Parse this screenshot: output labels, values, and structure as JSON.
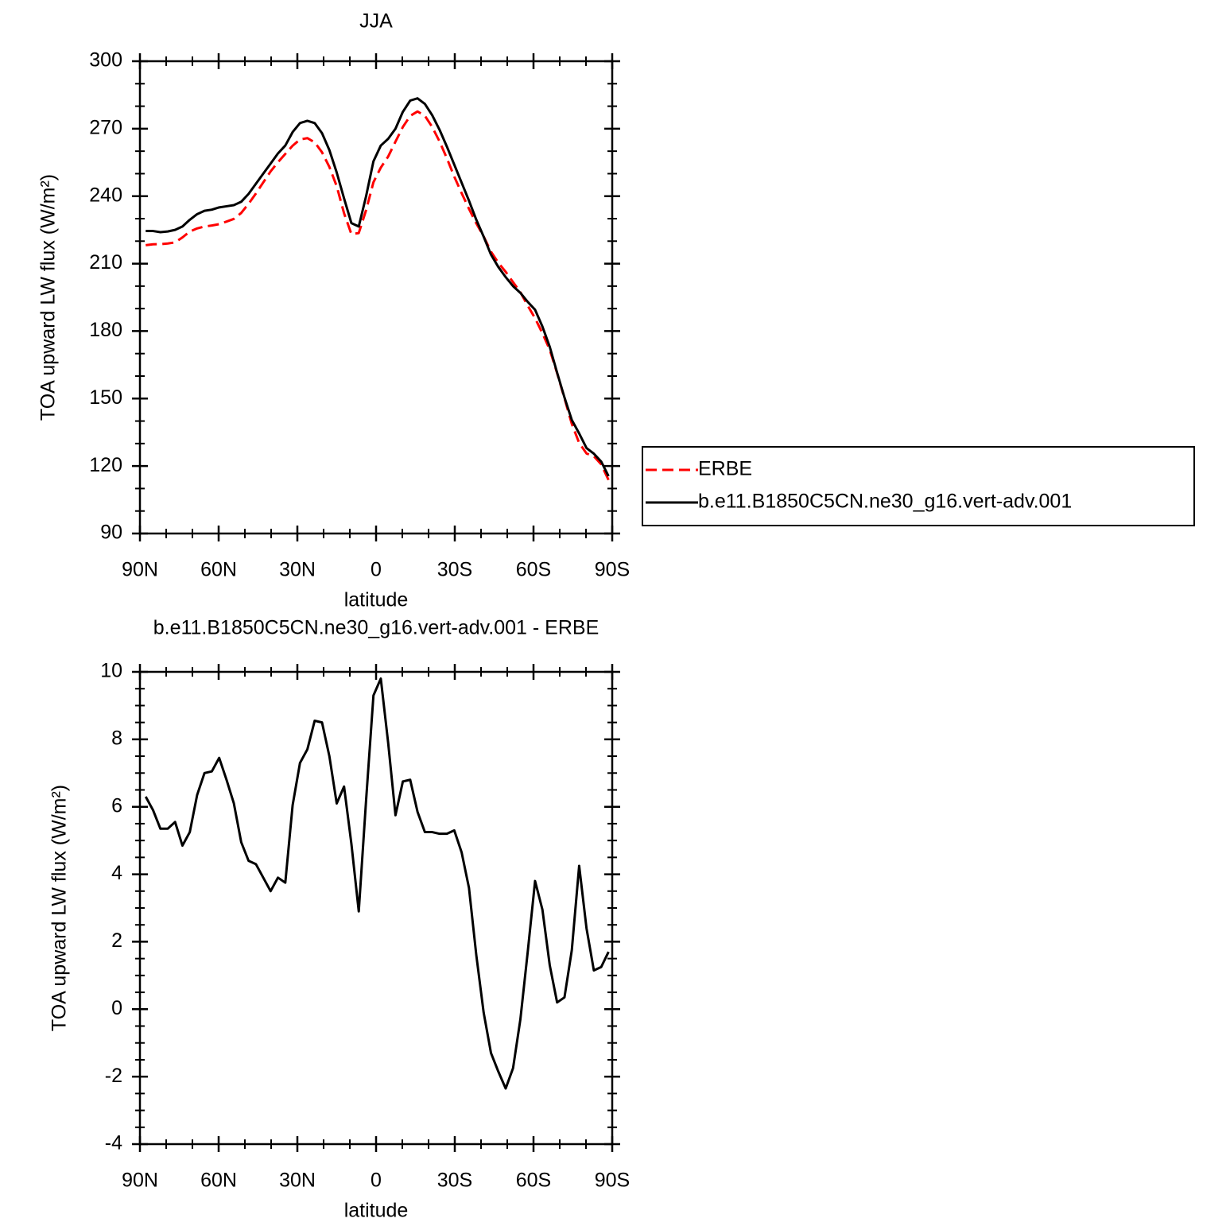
{
  "chart_data": [
    {
      "type": "line",
      "title": "JJA",
      "xlabel": "latitude",
      "ylabel": "TOA upward LW flux (W/m²)",
      "x": [
        87.8,
        85.0,
        82.2,
        79.4,
        76.6,
        73.8,
        71.0,
        68.2,
        65.4,
        62.6,
        59.8,
        57.0,
        54.2,
        51.4,
        48.6,
        45.8,
        43.0,
        40.2,
        37.4,
        34.6,
        31.8,
        29.0,
        26.2,
        23.4,
        20.6,
        17.8,
        15.0,
        12.2,
        9.4,
        6.6,
        3.8,
        1.0,
        -1.8,
        -4.6,
        -7.4,
        -10.2,
        -13.0,
        -15.8,
        -18.6,
        -21.4,
        -24.2,
        -27.0,
        -29.8,
        -32.6,
        -35.4,
        -38.2,
        -41.0,
        -43.8,
        -46.6,
        -49.4,
        -52.2,
        -55.0,
        -57.8,
        -60.6,
        -63.4,
        -66.2,
        -69.0,
        -71.8,
        -74.6,
        -77.4,
        -80.2,
        -83.0,
        -85.8,
        -88.6
      ],
      "series": [
        {
          "name": "ERBE",
          "color": "#ff0000",
          "dashed": true,
          "values": [
            218.2,
            218.6,
            218.65,
            218.95,
            219.45,
            221.65,
            224.25,
            225.65,
            226.5,
            226.95,
            227.55,
            228.7,
            229.9,
            232.55,
            236.6,
            241.2,
            246.1,
            251.0,
            255.1,
            258.75,
            262.45,
            265.2,
            265.8,
            263.95,
            259.5,
            253.0,
            244.4,
            232.4,
            223.1,
            223.6,
            233.8,
            246.2,
            252.7,
            257.6,
            264.25,
            270.75,
            275.7,
            277.65,
            275.75,
            270.75,
            264.3,
            256.8,
            248.7,
            241.35,
            234.4,
            227.9,
            222.1,
            215.3,
            210.35,
            206.35,
            201.75,
            197.3,
            191.3,
            185.7,
            179.05,
            171.7,
            161.3,
            150.15,
            138.75,
            130.25,
            125.6,
            124.35,
            120.75,
            113.8
          ]
        },
        {
          "name": "b.e11.B1850C5CN.ne30_g16.vert-adv.001",
          "color": "#000000",
          "dashed": false,
          "values": [
            224.5,
            224.5,
            224,
            224.3,
            225,
            226.5,
            229.5,
            232,
            233.5,
            234,
            235,
            235.5,
            236,
            237.5,
            241,
            245.5,
            250,
            254.5,
            259,
            262.5,
            268.5,
            272.5,
            273.5,
            272.5,
            268,
            260.5,
            250.5,
            239,
            228,
            226.5,
            240,
            255.5,
            262.5,
            265.5,
            270,
            277.5,
            282.5,
            283.5,
            281,
            276,
            269.5,
            262,
            254,
            246,
            238,
            229.5,
            222,
            214,
            208.5,
            204,
            200,
            197,
            193,
            189.5,
            182,
            173,
            161.5,
            150.5,
            140.5,
            134.5,
            128,
            125.5,
            122,
            115.5
          ]
        }
      ],
      "xlim": [
        90,
        -90
      ],
      "xticks": [
        {
          "value": 90,
          "label": "90N"
        },
        {
          "value": 60,
          "label": "60N"
        },
        {
          "value": 30,
          "label": "30N"
        },
        0,
        {
          "value": -30,
          "label": "30S"
        },
        {
          "value": -60,
          "label": "60S"
        },
        {
          "value": -90,
          "label": "90S"
        }
      ],
      "ylim": [
        90,
        300
      ],
      "yticks": [
        90,
        120,
        150,
        180,
        210,
        240,
        270,
        300
      ]
    },
    {
      "type": "line",
      "title": "b.e11.B1850C5CN.ne30_g16.vert-adv.001 - ERBE",
      "xlabel": "latitude",
      "ylabel": "TOA upward LW flux (W/m²)",
      "x": [
        87.8,
        85.0,
        82.2,
        79.4,
        76.6,
        73.8,
        71.0,
        68.2,
        65.4,
        62.6,
        59.8,
        57.0,
        54.2,
        51.4,
        48.6,
        45.8,
        43.0,
        40.2,
        37.4,
        34.6,
        31.8,
        29.0,
        26.2,
        23.4,
        20.6,
        17.8,
        15.0,
        12.2,
        9.4,
        6.6,
        3.8,
        1.0,
        -1.8,
        -4.6,
        -7.4,
        -10.2,
        -13.0,
        -15.8,
        -18.6,
        -21.4,
        -24.2,
        -27.0,
        -29.8,
        -32.6,
        -35.4,
        -38.2,
        -41.0,
        -43.8,
        -46.6,
        -49.4,
        -52.2,
        -55.0,
        -57.8,
        -60.6,
        -63.4,
        -66.2,
        -69.0,
        -71.8,
        -74.6,
        -77.4,
        -80.2,
        -83.0,
        -85.8,
        -88.6
      ],
      "color": "#000000",
      "values": [
        6.3,
        5.9,
        5.35,
        5.35,
        5.55,
        4.85,
        5.25,
        6.35,
        7.0,
        7.05,
        7.45,
        6.8,
        6.1,
        4.95,
        4.4,
        4.3,
        3.9,
        3.5,
        3.9,
        3.75,
        6.05,
        7.3,
        7.7,
        8.55,
        8.5,
        7.5,
        6.1,
        6.6,
        4.9,
        2.9,
        6.2,
        9.3,
        9.8,
        7.9,
        5.75,
        6.75,
        6.8,
        5.85,
        5.25,
        5.25,
        5.2,
        5.2,
        5.3,
        4.65,
        3.6,
        1.6,
        -0.1,
        -1.3,
        -1.85,
        -2.35,
        -1.75,
        -0.3,
        1.7,
        3.8,
        2.95,
        1.3,
        0.2,
        0.35,
        1.75,
        4.25,
        2.4,
        1.15,
        1.25,
        1.7
      ],
      "xlim": [
        90,
        -90
      ],
      "xticks": [
        {
          "value": 90,
          "label": "90N"
        },
        {
          "value": 60,
          "label": "60N"
        },
        {
          "value": 30,
          "label": "30N"
        },
        0,
        {
          "value": -30,
          "label": "30S"
        },
        {
          "value": -60,
          "label": "60S"
        },
        {
          "value": -90,
          "label": "90S"
        }
      ],
      "ylim": [
        -4,
        10
      ],
      "yticks": [
        -4,
        -2,
        0,
        2,
        4,
        6,
        8,
        10
      ]
    }
  ]
}
